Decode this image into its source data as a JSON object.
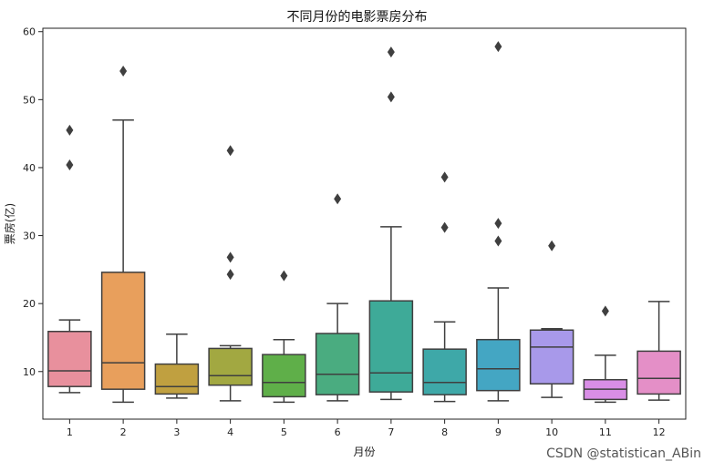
{
  "chart_data": {
    "type": "box",
    "title": "不同月份的电影票房分布",
    "xlabel": "月份",
    "ylabel": "票房(亿)",
    "ylim": [
      3,
      60.5
    ],
    "yticks": [
      10,
      20,
      30,
      40,
      50,
      60
    ],
    "categories": [
      "1",
      "2",
      "3",
      "4",
      "5",
      "6",
      "7",
      "8",
      "9",
      "10",
      "11",
      "12"
    ],
    "boxes": [
      {
        "whisker_low": 6.9,
        "q1": 7.8,
        "median": 10.1,
        "q3": 15.9,
        "whisker_high": 17.6,
        "outliers": [
          40.4,
          45.5
        ]
      },
      {
        "whisker_low": 5.5,
        "q1": 7.4,
        "median": 11.3,
        "q3": 24.6,
        "whisker_high": 47.0,
        "outliers": [
          54.2
        ]
      },
      {
        "whisker_low": 6.1,
        "q1": 6.7,
        "median": 7.8,
        "q3": 11.1,
        "whisker_high": 15.5,
        "outliers": []
      },
      {
        "whisker_low": 5.7,
        "q1": 8.0,
        "median": 9.4,
        "q3": 13.4,
        "whisker_high": 13.8,
        "outliers": [
          24.3,
          26.8,
          42.5
        ]
      },
      {
        "whisker_low": 5.5,
        "q1": 6.3,
        "median": 8.4,
        "q3": 12.5,
        "whisker_high": 14.7,
        "outliers": [
          24.1
        ]
      },
      {
        "whisker_low": 5.7,
        "q1": 6.6,
        "median": 9.6,
        "q3": 15.6,
        "whisker_high": 20.0,
        "outliers": [
          35.4
        ]
      },
      {
        "whisker_low": 5.9,
        "q1": 7.0,
        "median": 9.8,
        "q3": 20.4,
        "whisker_high": 31.3,
        "outliers": [
          50.4,
          57.0
        ]
      },
      {
        "whisker_low": 5.6,
        "q1": 6.6,
        "median": 8.4,
        "q3": 13.3,
        "whisker_high": 17.3,
        "outliers": [
          31.2,
          38.6
        ]
      },
      {
        "whisker_low": 5.7,
        "q1": 7.2,
        "median": 10.4,
        "q3": 14.7,
        "whisker_high": 22.3,
        "outliers": [
          29.2,
          31.8,
          57.8
        ]
      },
      {
        "whisker_low": 6.2,
        "q1": 8.2,
        "median": 13.6,
        "q3": 16.1,
        "whisker_high": 16.3,
        "outliers": [
          28.5
        ]
      },
      {
        "whisker_low": 5.5,
        "q1": 5.9,
        "median": 7.4,
        "q3": 8.8,
        "whisker_high": 12.4,
        "outliers": [
          18.9
        ]
      },
      {
        "whisker_low": 5.8,
        "q1": 6.7,
        "median": 9.0,
        "q3": 13.0,
        "whisker_high": 20.3,
        "outliers": []
      }
    ],
    "colors": [
      "#e8909d",
      "#e89f5c",
      "#c0a040",
      "#a2a841",
      "#5faf49",
      "#4aac80",
      "#3eaa98",
      "#3ea8a8",
      "#44a6c3",
      "#a899ea",
      "#d98ee6",
      "#e48fc7"
    ],
    "grid": false,
    "legend": "none"
  },
  "watermark": "CSDN @statistican_ABin"
}
